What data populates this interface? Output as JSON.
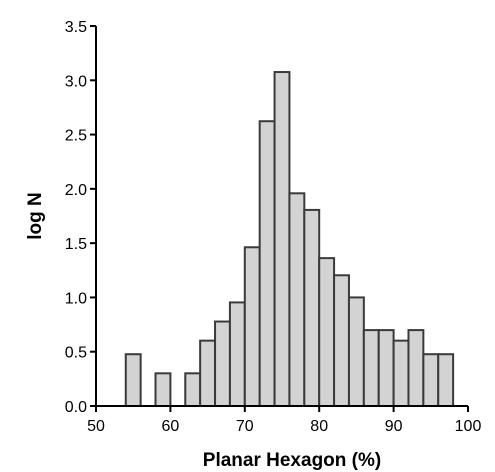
{
  "chart_data": {
    "type": "bar",
    "xlabel": "Planar Hexagon (%)",
    "ylabel": "log N",
    "xlim": [
      50,
      100
    ],
    "ylim": [
      0,
      3.5
    ],
    "x_ticks": [
      "50",
      "60",
      "70",
      "80",
      "90",
      "100"
    ],
    "y_ticks": [
      "0.0",
      "0.5",
      "1.0",
      "1.5",
      "2.0",
      "2.5",
      "3.0",
      "3.5"
    ],
    "bin_width": 2,
    "bins": [
      {
        "start": 50,
        "value": 0
      },
      {
        "start": 52,
        "value": 0
      },
      {
        "start": 54,
        "value": 0.477
      },
      {
        "start": 56,
        "value": 0
      },
      {
        "start": 58,
        "value": 0.301
      },
      {
        "start": 60,
        "value": 0
      },
      {
        "start": 62,
        "value": 0.301
      },
      {
        "start": 64,
        "value": 0.602
      },
      {
        "start": 66,
        "value": 0.778
      },
      {
        "start": 68,
        "value": 0.954
      },
      {
        "start": 70,
        "value": 1.462
      },
      {
        "start": 72,
        "value": 2.623
      },
      {
        "start": 74,
        "value": 3.076
      },
      {
        "start": 76,
        "value": 1.959
      },
      {
        "start": 78,
        "value": 1.806
      },
      {
        "start": 80,
        "value": 1.362
      },
      {
        "start": 82,
        "value": 1.204
      },
      {
        "start": 84,
        "value": 1.0
      },
      {
        "start": 86,
        "value": 0.699
      },
      {
        "start": 88,
        "value": 0.699
      },
      {
        "start": 90,
        "value": 0.602
      },
      {
        "start": 92,
        "value": 0.699
      },
      {
        "start": 94,
        "value": 0.477
      },
      {
        "start": 96,
        "value": 0.477
      }
    ],
    "grid": false,
    "bar_fill": "#d3d3d3",
    "bar_stroke": "#3a3a3a"
  }
}
